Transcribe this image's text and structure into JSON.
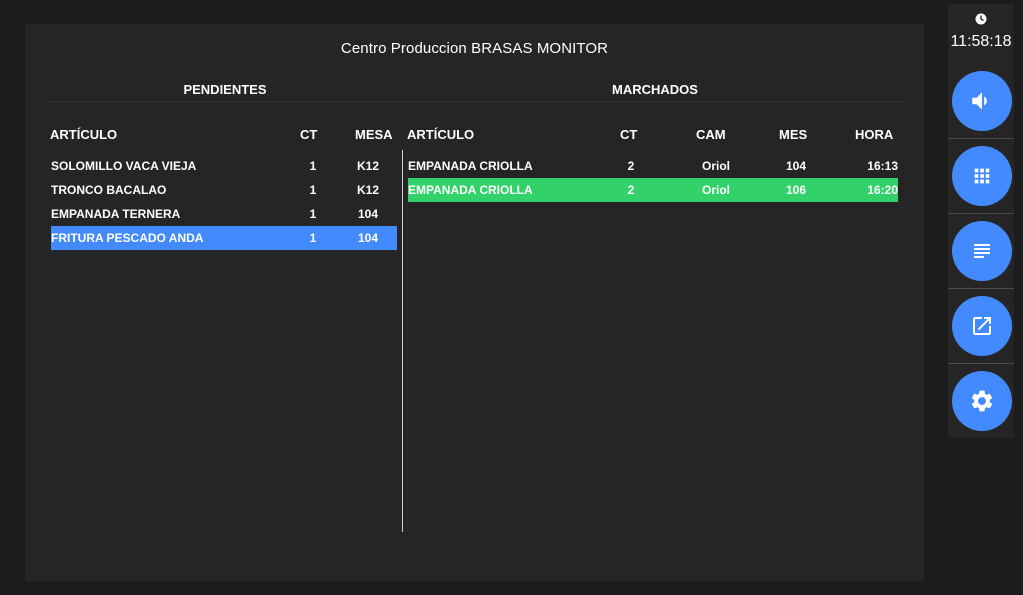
{
  "header": {
    "title": "Centro Produccion BRASAS MONITOR"
  },
  "pendientes": {
    "title": "PENDIENTES",
    "columns": {
      "articulo": "ARTÍCULO",
      "ct": "CT",
      "mesa": "MESA"
    },
    "rows": [
      {
        "articulo": "SOLOMILLO VACA VIEJA",
        "ct": "1",
        "mesa": "K12"
      },
      {
        "articulo": "TRONCO BACALAO",
        "ct": "1",
        "mesa": "K12"
      },
      {
        "articulo": "EMPANADA TERNERA",
        "ct": "1",
        "mesa": "104"
      },
      {
        "articulo": "FRITURA PESCADO ANDA",
        "ct": "1",
        "mesa": "104"
      }
    ],
    "selected_color": "#448aff"
  },
  "marchados": {
    "title": "MARCHADOS",
    "columns": {
      "articulo": "ARTÍCULO",
      "ct": "CT",
      "cam": "CAM",
      "mes": "MES",
      "hora": "HORA"
    },
    "rows": [
      {
        "articulo": "EMPANADA CRIOLLA",
        "ct": "2",
        "cam": "Oriol",
        "mes": "104",
        "hora": "16:13"
      },
      {
        "articulo": "EMPANADA CRIOLLA",
        "ct": "2",
        "cam": "Oriol",
        "mes": "106",
        "hora": "16:20"
      }
    ],
    "selected_color": "#33d16a"
  },
  "sidebar": {
    "clock": "11:58:18",
    "buttons": [
      {
        "icon": "volume-icon"
      },
      {
        "icon": "grid-icon"
      },
      {
        "icon": "list-icon"
      },
      {
        "icon": "open-external-icon"
      },
      {
        "icon": "gear-icon"
      }
    ],
    "accent": "#448aff"
  }
}
